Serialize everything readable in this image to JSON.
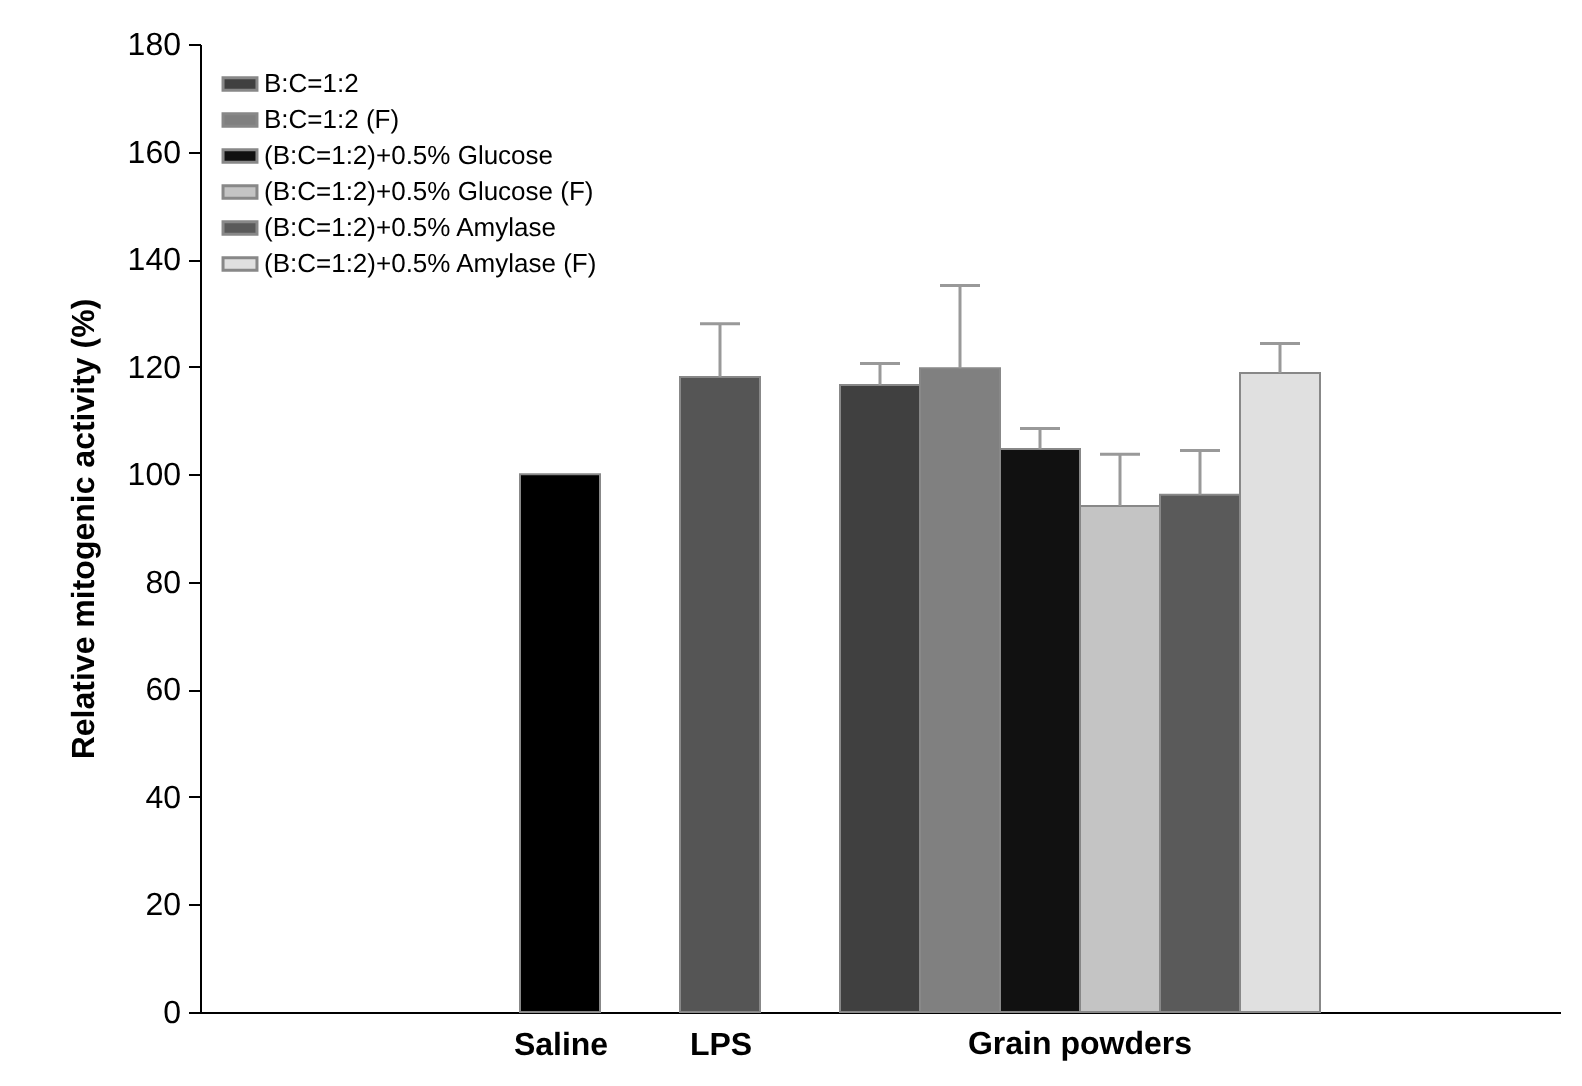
{
  "chart_data": {
    "type": "bar",
    "ylabel": "Relative mitogenic activity (%)",
    "categories": [
      null,
      null,
      null,
      null,
      "Saline",
      null,
      "LPS",
      null,
      null,
      null,
      null,
      null,
      null,
      null,
      null,
      null,
      null
    ],
    "series": [
      {
        "color": "#000000",
        "values": [
          null,
          null,
          null,
          null,
          100,
          null,
          null,
          null,
          null,
          null,
          null,
          null,
          null,
          null,
          null,
          null,
          null
        ]
      },
      {
        "color": "#555555",
        "values": [
          null,
          null,
          null,
          null,
          null,
          null,
          118.1,
          null,
          null,
          null,
          null,
          null,
          null,
          null,
          null,
          null,
          null
        ],
        "errors": [
          null,
          null,
          null,
          null,
          null,
          null,
          [
            118.1,
            128
          ],
          null,
          null,
          null,
          null,
          null,
          null,
          null,
          null,
          null,
          null
        ]
      },
      {
        "name": "B:C=1:2",
        "color": "#404040",
        "values": [
          null,
          null,
          null,
          null,
          null,
          null,
          null,
          null,
          116.6,
          null,
          null,
          null,
          null,
          null,
          null,
          null,
          null
        ],
        "errors": [
          null,
          null,
          null,
          null,
          null,
          null,
          null,
          null,
          [
            116.6,
            120.6
          ],
          null,
          null,
          null,
          null,
          null,
          null,
          null,
          null
        ]
      },
      {
        "name": "B:C=1:2 (F)",
        "color": "#808080",
        "values": [
          null,
          null,
          null,
          null,
          null,
          null,
          null,
          null,
          null,
          119.7,
          null,
          null,
          null,
          null,
          null,
          null,
          null
        ],
        "errors": [
          null,
          null,
          null,
          null,
          null,
          null,
          null,
          null,
          null,
          [
            119.7,
            135.1
          ],
          null,
          null,
          null,
          null,
          null,
          null,
          null
        ]
      },
      {
        "name": "(B:C=1:2)+0.5% Glucose",
        "color": "#111111",
        "values": [
          null,
          null,
          null,
          null,
          null,
          null,
          null,
          null,
          null,
          null,
          104.7,
          null,
          null,
          null,
          null,
          null,
          null
        ],
        "errors": [
          null,
          null,
          null,
          null,
          null,
          null,
          null,
          null,
          null,
          null,
          [
            104.7,
            108.5
          ],
          null,
          null,
          null,
          null,
          null,
          null
        ]
      },
      {
        "name": "(B:C=1:2)+0.5% Glucose (F)",
        "color": "#c4c4c4",
        "values": [
          null,
          null,
          null,
          null,
          null,
          null,
          null,
          null,
          null,
          null,
          null,
          94.1,
          null,
          null,
          null,
          null,
          null
        ],
        "errors": [
          null,
          null,
          null,
          null,
          null,
          null,
          null,
          null,
          null,
          null,
          null,
          [
            94.1,
            103.7
          ],
          null,
          null,
          null,
          null,
          null
        ]
      },
      {
        "name": "(B:C=1:2)+0.5% Amylase",
        "color": "#5a5a5a",
        "values": [
          null,
          null,
          null,
          null,
          null,
          null,
          null,
          null,
          null,
          null,
          null,
          null,
          96.2,
          null,
          null,
          null,
          null
        ],
        "errors": [
          null,
          null,
          null,
          null,
          null,
          null,
          null,
          null,
          null,
          null,
          null,
          null,
          [
            96.2,
            104.4
          ],
          null,
          null,
          null,
          null
        ]
      },
      {
        "name": "(B:C=1:2)+0.5% Amylase (F)",
        "color": "#e0e0e0",
        "values": [
          null,
          null,
          null,
          null,
          null,
          null,
          null,
          null,
          null,
          null,
          null,
          null,
          null,
          118.8,
          null,
          null,
          null
        ],
        "errors": [
          null,
          null,
          null,
          null,
          null,
          null,
          null,
          null,
          null,
          null,
          null,
          null,
          null,
          [
            118.8,
            124.3
          ],
          null,
          null,
          null
        ]
      }
    ],
    "annotations": [
      "Grain powders"
    ],
    "ylim": [
      0,
      180
    ],
    "yticks": [
      0,
      20,
      40,
      60,
      80,
      100,
      120,
      140,
      160,
      180
    ],
    "grid": false,
    "legend": "top left"
  }
}
